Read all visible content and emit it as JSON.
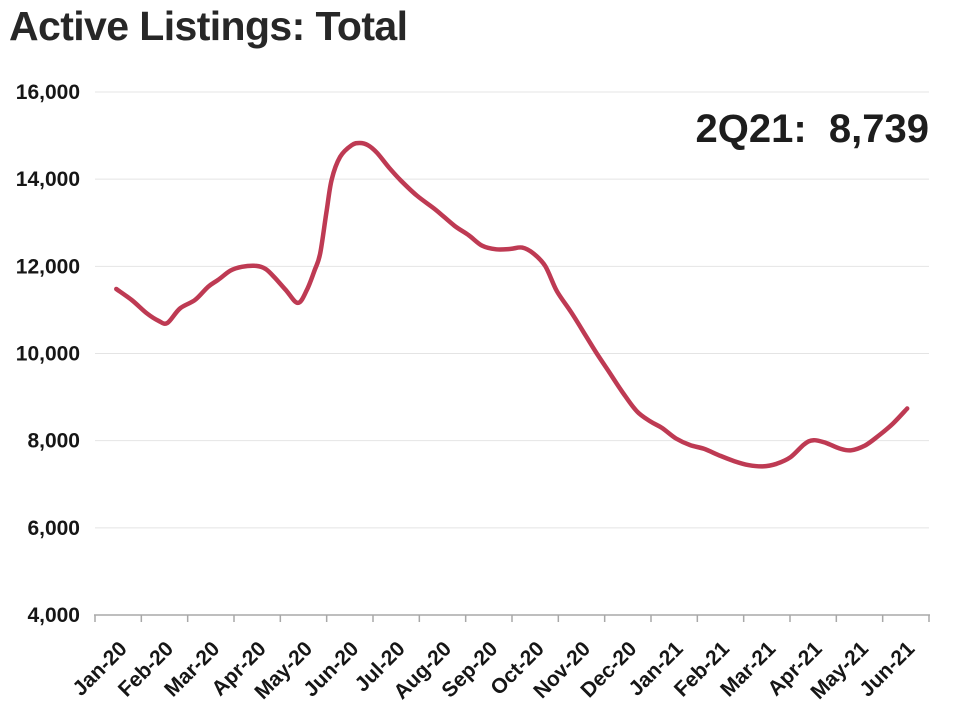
{
  "title": "Active Listings: Total",
  "annotation": {
    "label": "2Q21:",
    "value": "8,739",
    "text": "2Q21:  8,739"
  },
  "colors": {
    "line": "#BE3A53",
    "gridline": "#e4e4e4",
    "axis": "#a8a8a8",
    "text": "#161616",
    "title_text": "#272727",
    "background": "#ffffff"
  },
  "chart_data": {
    "type": "line",
    "title": "Active Listings: Total",
    "series_name": "Active Listings: Total",
    "annotation": "2Q21:  8,739",
    "last_value": 8739,
    "legend": "none",
    "grid": "horizontal",
    "x_categories": [
      "Jan-20",
      "Feb-20",
      "Mar-20",
      "Apr-20",
      "May-20",
      "Jun-20",
      "Jul-20",
      "Aug-20",
      "Sep-20",
      "Oct-20",
      "Nov-20",
      "Dec-20",
      "Jan-21",
      "Feb-21",
      "Mar-21",
      "Apr-21",
      "May-21",
      "Jun-21"
    ],
    "x_unit": "months-since-Jan-2020-axis-start (fractional = weekly samples)",
    "y_ticks": [
      16000,
      14000,
      12000,
      10000,
      8000,
      6000,
      4000
    ],
    "y_tick_labels": [
      "16,000",
      "14,000",
      "12,000",
      "10,000",
      "8,000",
      "6,000",
      "4,000"
    ],
    "ylim": [
      4000,
      16000
    ],
    "xlim_months": [
      0,
      18
    ],
    "points": [
      [
        0.46,
        11480
      ],
      [
        0.8,
        11220
      ],
      [
        1.12,
        10920
      ],
      [
        1.37,
        10750
      ],
      [
        1.56,
        10700
      ],
      [
        1.83,
        11030
      ],
      [
        2.16,
        11230
      ],
      [
        2.44,
        11530
      ],
      [
        2.66,
        11690
      ],
      [
        2.92,
        11900
      ],
      [
        3.17,
        11990
      ],
      [
        3.48,
        12010
      ],
      [
        3.68,
        11940
      ],
      [
        3.88,
        11740
      ],
      [
        4.13,
        11440
      ],
      [
        4.38,
        11160
      ],
      [
        4.57,
        11450
      ],
      [
        4.74,
        11910
      ],
      [
        4.86,
        12300
      ],
      [
        5.0,
        13280
      ],
      [
        5.11,
        14000
      ],
      [
        5.29,
        14510
      ],
      [
        5.54,
        14780
      ],
      [
        5.72,
        14830
      ],
      [
        5.89,
        14780
      ],
      [
        6.09,
        14600
      ],
      [
        6.35,
        14260
      ],
      [
        6.6,
        13970
      ],
      [
        6.95,
        13620
      ],
      [
        7.35,
        13300
      ],
      [
        7.76,
        12930
      ],
      [
        8.06,
        12720
      ],
      [
        8.36,
        12470
      ],
      [
        8.66,
        12390
      ],
      [
        8.97,
        12400
      ],
      [
        9.22,
        12430
      ],
      [
        9.47,
        12290
      ],
      [
        9.72,
        12000
      ],
      [
        9.97,
        11430
      ],
      [
        10.27,
        10960
      ],
      [
        10.58,
        10430
      ],
      [
        10.83,
        10000
      ],
      [
        11.08,
        9600
      ],
      [
        11.38,
        9120
      ],
      [
        11.69,
        8680
      ],
      [
        11.99,
        8440
      ],
      [
        12.24,
        8290
      ],
      [
        12.54,
        8050
      ],
      [
        12.84,
        7900
      ],
      [
        13.15,
        7810
      ],
      [
        13.5,
        7650
      ],
      [
        13.8,
        7530
      ],
      [
        14.1,
        7440
      ],
      [
        14.41,
        7410
      ],
      [
        14.71,
        7470
      ],
      [
        15.01,
        7620
      ],
      [
        15.31,
        7920
      ],
      [
        15.51,
        8010
      ],
      [
        15.77,
        7950
      ],
      [
        16.07,
        7820
      ],
      [
        16.32,
        7780
      ],
      [
        16.62,
        7890
      ],
      [
        16.92,
        8120
      ],
      [
        17.23,
        8400
      ],
      [
        17.53,
        8739
      ]
    ]
  }
}
